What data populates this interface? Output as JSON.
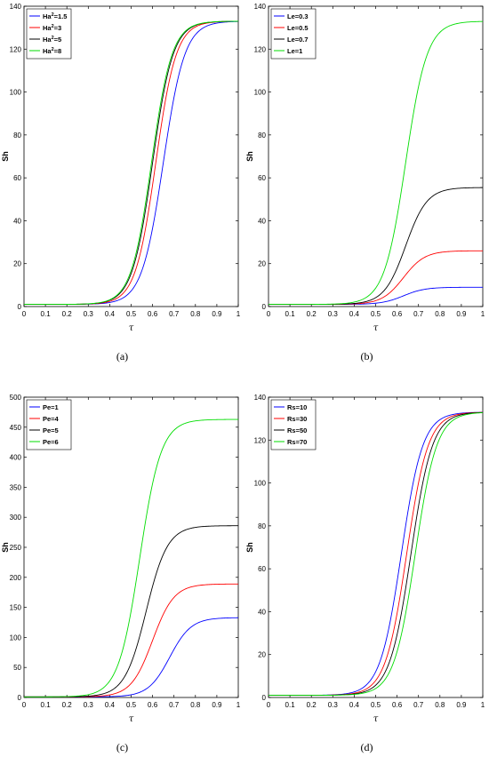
{
  "chart_data": [
    {
      "id": "a",
      "type": "line",
      "caption": "(a)",
      "xlabel": "τ",
      "ylabel": "Sh",
      "xlim": [
        0,
        1
      ],
      "ylim": [
        0,
        140
      ],
      "xticks": [
        "0",
        "0.1",
        "0.2",
        "0.3",
        "0.4",
        "0.5",
        "0.6",
        "0.7",
        "0.8",
        "0.9",
        "1"
      ],
      "yticks": [
        "0",
        "20",
        "40",
        "60",
        "80",
        "100",
        "120",
        "140"
      ],
      "legend_placement": "top-left",
      "series": [
        {
          "name": "Ha²=1.5",
          "label_main": "Ha",
          "label_sup": "2",
          "label_rest": "=1.5",
          "color": "#0000ff",
          "base": 1,
          "max": 133,
          "center": 0.65,
          "k": 20
        },
        {
          "name": "Ha²=3",
          "label_main": "Ha",
          "label_sup": "2",
          "label_rest": "=3",
          "color": "#ff0000",
          "base": 1,
          "max": 133,
          "center": 0.615,
          "k": 21
        },
        {
          "name": "Ha²=5",
          "label_main": "Ha",
          "label_sup": "2",
          "label_rest": "=5",
          "color": "#000000",
          "base": 1,
          "max": 133,
          "center": 0.6,
          "k": 21
        },
        {
          "name": "Ha²=8",
          "label_main": "Ha",
          "label_sup": "2",
          "label_rest": "=8",
          "color": "#00dd00",
          "base": 1,
          "max": 133,
          "center": 0.595,
          "k": 21
        }
      ]
    },
    {
      "id": "b",
      "type": "line",
      "caption": "(b)",
      "xlabel": "τ",
      "ylabel": "Sh",
      "xlim": [
        0,
        1
      ],
      "ylim": [
        0,
        140
      ],
      "xticks": [
        "0",
        "0.1",
        "0.2",
        "0.3",
        "0.4",
        "0.5",
        "0.6",
        "0.7",
        "0.8",
        "0.9",
        "1"
      ],
      "yticks": [
        "0",
        "20",
        "40",
        "60",
        "80",
        "100",
        "120",
        "140"
      ],
      "legend_placement": "top-left",
      "series": [
        {
          "name": "Le=0.3",
          "label_main": "Le=0.3",
          "label_sup": "",
          "label_rest": "",
          "color": "#0000ff",
          "base": 1,
          "max": 9,
          "center": 0.63,
          "k": 20
        },
        {
          "name": "Le=0.5",
          "label_main": "Le=0.5",
          "label_sup": "",
          "label_rest": "",
          "color": "#ff0000",
          "base": 1,
          "max": 26,
          "center": 0.63,
          "k": 20
        },
        {
          "name": "Le=0.7",
          "label_main": "Le=0.7",
          "label_sup": "",
          "label_rest": "",
          "color": "#000000",
          "base": 1,
          "max": 55.5,
          "center": 0.64,
          "k": 20
        },
        {
          "name": "Le=1",
          "label_main": "Le=1",
          "label_sup": "",
          "label_rest": "",
          "color": "#00dd00",
          "base": 1,
          "max": 133,
          "center": 0.64,
          "k": 20
        }
      ]
    },
    {
      "id": "c",
      "type": "line",
      "caption": "(c)",
      "xlabel": "τ",
      "ylabel": "Sh",
      "xlim": [
        0,
        1
      ],
      "ylim": [
        0,
        500
      ],
      "xticks": [
        "0",
        "0.1",
        "0.2",
        "0.3",
        "0.4",
        "0.5",
        "0.6",
        "0.7",
        "0.8",
        "0.9",
        "1"
      ],
      "yticks": [
        "0",
        "50",
        "100",
        "150",
        "200",
        "250",
        "300",
        "350",
        "400",
        "450",
        "500"
      ],
      "legend_placement": "top-left",
      "series": [
        {
          "name": "Pe=1",
          "label_main": "Pe=1",
          "label_sup": "",
          "label_rest": "",
          "color": "#0000ff",
          "base": 1,
          "max": 133,
          "center": 0.68,
          "k": 20
        },
        {
          "name": "Pe=4",
          "label_main": "Pe=4",
          "label_sup": "",
          "label_rest": "",
          "color": "#ff0000",
          "base": 1,
          "max": 189,
          "center": 0.6,
          "k": 20
        },
        {
          "name": "Pe=5",
          "label_main": "Pe=5",
          "label_sup": "",
          "label_rest": "",
          "color": "#000000",
          "base": 1,
          "max": 286,
          "center": 0.57,
          "k": 20
        },
        {
          "name": "Pe=6",
          "label_main": "Pe=6",
          "label_sup": "",
          "label_rest": "",
          "color": "#00dd00",
          "base": 1,
          "max": 463,
          "center": 0.54,
          "k": 20
        }
      ]
    },
    {
      "id": "d",
      "type": "line",
      "caption": "(d)",
      "xlabel": "τ",
      "ylabel": "Sh",
      "xlim": [
        0,
        1
      ],
      "ylim": [
        0,
        140
      ],
      "xticks": [
        "0",
        "0.1",
        "0.2",
        "0.3",
        "0.4",
        "0.5",
        "0.6",
        "0.7",
        "0.8",
        "0.9",
        "1"
      ],
      "yticks": [
        "0",
        "20",
        "40",
        "60",
        "80",
        "100",
        "120",
        "140"
      ],
      "legend_placement": "top-left",
      "series": [
        {
          "name": "Rs=10",
          "label_main": "Rs=10",
          "label_sup": "",
          "label_rest": "",
          "color": "#0000ff",
          "base": 1,
          "max": 133,
          "center": 0.62,
          "k": 20
        },
        {
          "name": "Rs=30",
          "label_main": "Rs=30",
          "label_sup": "",
          "label_rest": "",
          "color": "#ff0000",
          "base": 1,
          "max": 133,
          "center": 0.645,
          "k": 20
        },
        {
          "name": "Rs=50",
          "label_main": "Rs=50",
          "label_sup": "",
          "label_rest": "",
          "color": "#000000",
          "base": 1,
          "max": 133,
          "center": 0.665,
          "k": 20
        },
        {
          "name": "Rs=70",
          "label_main": "Rs=70",
          "label_sup": "",
          "label_rest": "",
          "color": "#00dd00",
          "base": 1,
          "max": 133,
          "center": 0.685,
          "k": 20
        }
      ]
    }
  ]
}
